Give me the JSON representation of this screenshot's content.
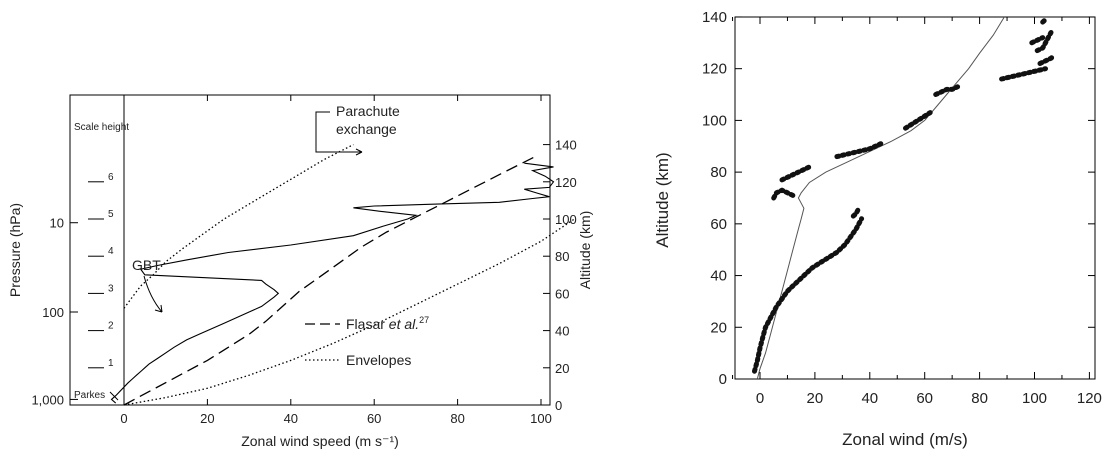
{
  "chart_data": [
    {
      "type": "line",
      "xlabel": "Zonal wind speed (m s⁻¹)",
      "ylabel_left": "Pressure (hPa)",
      "ylabel_right": "Altitude (km)",
      "xlim": [
        -17,
        110
      ],
      "ylim_altitude_km": [
        0,
        150
      ],
      "x_ticks": [
        "0",
        "20",
        "40",
        "60",
        "80",
        "100"
      ],
      "pressure_ticks": [
        {
          "label": "10",
          "altitude_km": 98
        },
        {
          "label": "100",
          "altitude_km": 50
        },
        {
          "label": "1,000",
          "altitude_km": 3
        }
      ],
      "altitude_ticks": [
        "0",
        "20",
        "40",
        "60",
        "80",
        "100",
        "120",
        "140"
      ],
      "scale_height": {
        "label": "Scale height",
        "ticks": [
          {
            "label": "1",
            "altitude_km": 20
          },
          {
            "label": "2",
            "altitude_km": 40
          },
          {
            "label": "3",
            "altitude_km": 60
          },
          {
            "label": "4",
            "altitude_km": 80
          },
          {
            "label": "5",
            "altitude_km": 100
          },
          {
            "label": "6",
            "altitude_km": 120
          }
        ]
      },
      "annotations": {
        "parkes": "Parkes",
        "gbt": "GBT",
        "parachute_line1": "Parachute",
        "parachute_line2": "exchange"
      },
      "legend": {
        "placement": "bottom-right",
        "flasar_prefix": "Flasar ",
        "flasar_italic": "et al.",
        "flasar_sup": "27",
        "envelopes": "Envelopes"
      },
      "series": [
        {
          "style": "solid",
          "x": [
            -2,
            -3,
            -2,
            1,
            2,
            3,
            4,
            5,
            6,
            8,
            10,
            12,
            15,
            18,
            21,
            24,
            27,
            30,
            33,
            36,
            37,
            36,
            34,
            33,
            5,
            4,
            8,
            15,
            25,
            40,
            55,
            62,
            68,
            70,
            62,
            55,
            60,
            75,
            90,
            98,
            102,
            99,
            96,
            102,
            103,
            101,
            98,
            103,
            96
          ],
          "y": [
            1,
            3,
            5,
            12,
            14,
            16,
            18,
            20,
            22,
            25,
            28,
            31,
            35,
            38,
            41,
            44,
            47,
            50,
            53,
            58,
            60,
            62,
            65,
            67,
            70,
            73,
            75,
            78,
            82,
            86,
            91,
            96,
            100,
            102,
            104,
            106,
            107,
            108,
            109,
            111,
            112,
            114,
            116,
            117,
            120,
            123,
            126,
            128,
            130
          ]
        },
        {
          "name": "Flasar et al.",
          "style": "dashed",
          "x": [
            0,
            5,
            10,
            15,
            20,
            25,
            30,
            34,
            38,
            42,
            47,
            52,
            57,
            63,
            70,
            77,
            84,
            91,
            99
          ],
          "y": [
            0,
            6,
            12,
            18,
            24,
            31,
            38,
            45,
            53,
            61,
            69,
            77,
            85,
            93,
            101,
            109,
            117,
            125,
            134
          ]
        },
        {
          "name": "Envelopes",
          "style": "dotted",
          "x": [
            0,
            2,
            4,
            7,
            10,
            14,
            19,
            24,
            30,
            36,
            42,
            48,
            55
          ],
          "y": [
            52,
            58,
            64,
            70,
            77,
            84,
            92,
            100,
            108,
            116,
            124,
            132,
            140
          ]
        },
        {
          "name": "Envelopes",
          "style": "dotted",
          "x": [
            0,
            10,
            20,
            30,
            40,
            50,
            60,
            70,
            80,
            90,
            100,
            108
          ],
          "y": [
            0,
            4,
            9,
            16,
            24,
            33,
            43,
            54,
            65,
            76,
            88,
            100
          ]
        }
      ]
    },
    {
      "type": "line",
      "xlabel": "Zonal wind (m/s)",
      "ylabel": "Altitude (km)",
      "xlim": [
        -10,
        120
      ],
      "ylim": [
        0,
        140
      ],
      "x_ticks": [
        "0",
        "20",
        "40",
        "60",
        "80",
        "100",
        "120"
      ],
      "y_ticks": [
        "0",
        "20",
        "40",
        "60",
        "80",
        "100",
        "120",
        "140"
      ],
      "series": [
        {
          "style": "thin-line",
          "x": [
            -1,
            0,
            2,
            4,
            6,
            8,
            10,
            12,
            14,
            15,
            16,
            15,
            14,
            15,
            18,
            24,
            32,
            40,
            48,
            55,
            60,
            64,
            68,
            72,
            76,
            80,
            85,
            89
          ],
          "y": [
            0,
            4,
            10,
            18,
            26,
            34,
            42,
            50,
            58,
            62,
            66,
            68,
            70,
            72,
            76,
            80,
            84,
            88,
            92,
            96,
            100,
            105,
            110,
            115,
            120,
            126,
            133,
            140
          ]
        },
        {
          "style": "thick-dashes",
          "segments": [
            {
              "x": [
                -2,
                -1,
                0,
                1,
                2,
                4,
                6,
                8,
                10,
                13,
                16,
                19,
                22,
                25,
                28,
                31,
                33,
                35,
                37
              ],
              "y": [
                3,
                7,
                12,
                16,
                20,
                24,
                28,
                31,
                34,
                37,
                40,
                43,
                45,
                47,
                49,
                52,
                55,
                58,
                62
              ]
            },
            {
              "x": [
                34,
                35,
                36
              ],
              "y": [
                63,
                64,
                66
              ]
            },
            {
              "x": [
                5,
                6,
                8,
                10,
                12
              ],
              "y": [
                70,
                72,
                73,
                72,
                71
              ]
            },
            {
              "x": [
                8,
                10,
                12,
                14,
                16,
                18
              ],
              "y": [
                77,
                78,
                79,
                80,
                81,
                82
              ]
            },
            {
              "x": [
                28,
                32,
                36,
                40,
                44
              ],
              "y": [
                86,
                87,
                88,
                89,
                91
              ]
            },
            {
              "x": [
                53,
                56,
                59,
                62
              ],
              "y": [
                97,
                99,
                101,
                103
              ]
            },
            {
              "x": [
                64,
                66,
                68,
                70,
                72
              ],
              "y": [
                110,
                111,
                112,
                112,
                113
              ]
            },
            {
              "x": [
                88,
                92,
                96,
                100,
                104
              ],
              "y": [
                116,
                117,
                118,
                119,
                120
              ]
            },
            {
              "x": [
                102,
                104,
                106,
                107
              ],
              "y": [
                122,
                123,
                124,
                125
              ]
            },
            {
              "x": [
                101,
                103,
                104,
                105,
                106
              ],
              "y": [
                127,
                128,
                130,
                132,
                134
              ]
            },
            {
              "x": [
                99,
                101,
                103
              ],
              "y": [
                130,
                131,
                132
              ]
            },
            {
              "x": [
                103,
                104
              ],
              "y": [
                138,
                139
              ]
            }
          ]
        }
      ]
    }
  ]
}
